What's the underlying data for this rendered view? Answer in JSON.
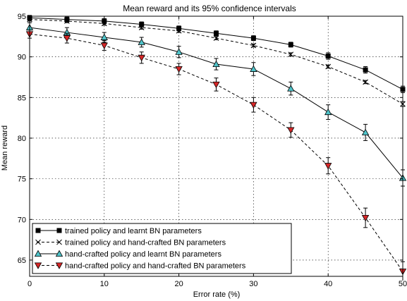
{
  "chart_data": {
    "type": "line",
    "title": "Mean reward and its 95% confidence intervals",
    "xlabel": "Error rate (%)",
    "ylabel": "Mean reward",
    "xlim": [
      0,
      50
    ],
    "ylim": [
      63,
      95
    ],
    "xticks": [
      0,
      10,
      20,
      30,
      40,
      50
    ],
    "yticks": [
      65,
      70,
      75,
      80,
      85,
      90,
      95
    ],
    "xtick_labels": [
      "0",
      "10",
      "20",
      "30",
      "40",
      "50"
    ],
    "ytick_labels": [
      "65",
      "70",
      "75",
      "80",
      "85",
      "90",
      "95"
    ],
    "grid": true,
    "legend_position": "lower-left",
    "x": [
      0,
      5,
      10,
      15,
      20,
      25,
      30,
      35,
      40,
      45,
      50
    ],
    "series": [
      {
        "name": "trained policy and learnt BN parameters",
        "marker": "square",
        "line": "solid",
        "color": "#000000",
        "values": [
          94.8,
          94.6,
          94.4,
          94.0,
          93.5,
          92.9,
          92.3,
          91.5,
          90.1,
          88.4,
          86.0
        ],
        "error": [
          0.3,
          0.3,
          0.3,
          0.3,
          0.3,
          0.3,
          0.3,
          0.3,
          0.4,
          0.4,
          0.4
        ]
      },
      {
        "name": "trained policy and hand-crafted BN parameters",
        "marker": "x",
        "line": "dashed",
        "color": "#000000",
        "values": [
          94.6,
          94.4,
          94.1,
          93.6,
          93.2,
          92.3,
          91.4,
          90.3,
          88.8,
          86.9,
          84.2
        ],
        "error": [
          0.2,
          0.2,
          0.2,
          0.2,
          0.2,
          0.2,
          0.2,
          0.2,
          0.2,
          0.2,
          0.3
        ]
      },
      {
        "name": "hand-crafted policy and learnt BN parameters",
        "marker": "triangle-up",
        "line": "solid",
        "color": "#000000",
        "marker_color": "#4fc3c9",
        "values": [
          93.6,
          93.0,
          92.4,
          91.8,
          90.6,
          89.1,
          88.5,
          86.1,
          83.2,
          80.7,
          75.1
        ],
        "error": [
          0.6,
          0.6,
          0.6,
          0.6,
          0.7,
          0.7,
          0.8,
          0.8,
          0.9,
          1.0,
          1.0
        ]
      },
      {
        "name": "hand-crafted policy and hand-crafted BN parameters",
        "marker": "triangle-down",
        "line": "dashed",
        "color": "#000000",
        "marker_color": "#d62728",
        "values": [
          92.8,
          92.3,
          91.4,
          89.9,
          88.5,
          86.6,
          84.1,
          81.0,
          76.6,
          70.2,
          63.6
        ],
        "error": [
          0.5,
          0.6,
          0.6,
          0.7,
          0.7,
          0.8,
          0.9,
          0.9,
          1.0,
          1.2,
          1.2
        ]
      }
    ]
  }
}
